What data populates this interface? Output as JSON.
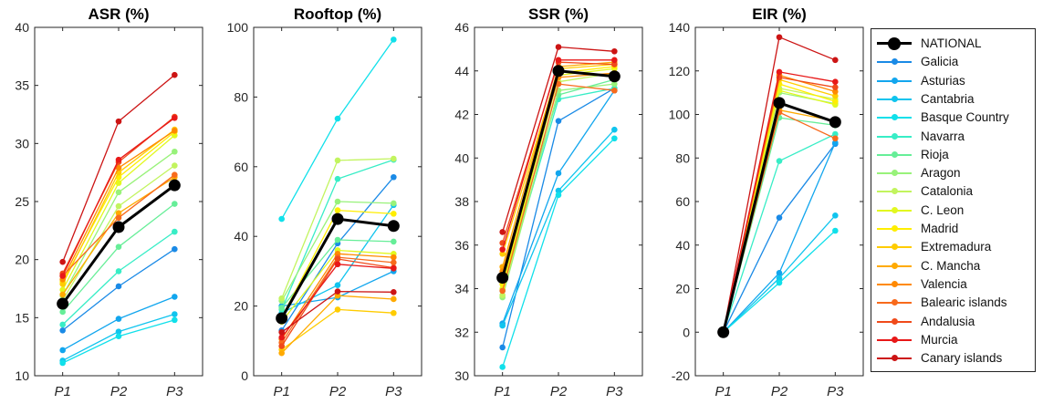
{
  "chart_data": [
    {
      "type": "line",
      "title": "ASR (%)",
      "categories": [
        "P1",
        "P2",
        "P3"
      ],
      "ylim": [
        10,
        40
      ],
      "yticks": [
        10,
        15,
        20,
        25,
        30,
        35,
        40
      ],
      "grid": false,
      "series": [
        {
          "name": "NATIONAL",
          "color": "#000000",
          "values": [
            16.2,
            22.8,
            26.4
          ]
        },
        {
          "name": "Galicia",
          "color": "#1a8ae6",
          "values": [
            13.9,
            17.7,
            20.9
          ]
        },
        {
          "name": "Asturias",
          "color": "#12a6ee",
          "values": [
            12.2,
            14.9,
            16.8
          ]
        },
        {
          "name": "Cantabria",
          "color": "#10c4ee",
          "values": [
            11.3,
            13.8,
            15.3
          ]
        },
        {
          "name": "Basque Country",
          "color": "#10e0ea",
          "values": [
            11.1,
            13.4,
            14.8
          ]
        },
        {
          "name": "Navarra",
          "color": "#38edc6",
          "values": [
            14.4,
            19.0,
            22.4
          ]
        },
        {
          "name": "Rioja",
          "color": "#66ee98",
          "values": [
            15.5,
            21.1,
            24.8
          ]
        },
        {
          "name": "Aragon",
          "color": "#98f27a",
          "values": [
            16.9,
            25.8,
            29.3
          ]
        },
        {
          "name": "Catalonia",
          "color": "#c2f45e",
          "values": [
            16.5,
            24.6,
            28.1
          ]
        },
        {
          "name": "C. Leon",
          "color": "#e2f820",
          "values": [
            17.4,
            26.6,
            30.7
          ]
        },
        {
          "name": "Madrid",
          "color": "#ffee00",
          "values": [
            18.1,
            27.1,
            31.0
          ]
        },
        {
          "name": "Extremadura",
          "color": "#ffcc00",
          "values": [
            17.9,
            27.5,
            31.2
          ]
        },
        {
          "name": "C. Mancha",
          "color": "#ffaa00",
          "values": [
            17.0,
            24.0,
            27.1
          ]
        },
        {
          "name": "Valencia",
          "color": "#ff8a00",
          "values": [
            18.3,
            27.9,
            31.1
          ]
        },
        {
          "name": "Balearic islands",
          "color": "#f86a1c",
          "values": [
            18.6,
            23.6,
            27.3
          ]
        },
        {
          "name": "Andalusia",
          "color": "#f04a1a",
          "values": [
            18.8,
            28.4,
            32.3
          ]
        },
        {
          "name": "Murcia",
          "color": "#e81818",
          "values": [
            18.6,
            28.6,
            32.2
          ]
        },
        {
          "name": "Canary islands",
          "color": "#cc1414",
          "values": [
            19.8,
            31.9,
            35.9
          ]
        }
      ]
    },
    {
      "type": "line",
      "title": "Rooftop (%)",
      "categories": [
        "P1",
        "P2",
        "P3"
      ],
      "ylim": [
        0,
        100
      ],
      "yticks": [
        0,
        20,
        40,
        60,
        80,
        100
      ],
      "grid": false,
      "series": [
        {
          "name": "NATIONAL",
          "color": "#000000",
          "values": [
            16.5,
            45.0,
            43.0
          ]
        },
        {
          "name": "Galicia",
          "color": "#1a8ae6",
          "values": [
            13.0,
            38.0,
            57.0
          ]
        },
        {
          "name": "Asturias",
          "color": "#12a6ee",
          "values": [
            20.0,
            22.5,
            30.0
          ]
        },
        {
          "name": "Cantabria",
          "color": "#10c4ee",
          "values": [
            18.0,
            26.0,
            49.0
          ]
        },
        {
          "name": "Basque Country",
          "color": "#10e0ea",
          "values": [
            45.0,
            73.8,
            96.5
          ]
        },
        {
          "name": "Navarra",
          "color": "#38edc6",
          "values": [
            19.0,
            56.5,
            62.0
          ]
        },
        {
          "name": "Rioja",
          "color": "#66ee98",
          "values": [
            19.5,
            39.0,
            38.5
          ]
        },
        {
          "name": "Aragon",
          "color": "#98f27a",
          "values": [
            21.5,
            50.0,
            49.5
          ]
        },
        {
          "name": "Catalonia",
          "color": "#c2f45e",
          "values": [
            22.2,
            61.8,
            62.3
          ]
        },
        {
          "name": "C. Leon",
          "color": "#e2f820",
          "values": [
            15.5,
            36.0,
            35.0
          ]
        },
        {
          "name": "Madrid",
          "color": "#ffee00",
          "values": [
            16.8,
            47.5,
            46.5
          ]
        },
        {
          "name": "Extremadura",
          "color": "#ffcc00",
          "values": [
            7.5,
            19.0,
            18.0
          ]
        },
        {
          "name": "C. Mancha",
          "color": "#ffaa00",
          "values": [
            6.5,
            23.0,
            22.0
          ]
        },
        {
          "name": "Valencia",
          "color": "#ff8a00",
          "values": [
            10.5,
            35.0,
            34.0
          ]
        },
        {
          "name": "Balearic islands",
          "color": "#f86a1c",
          "values": [
            9.5,
            34.0,
            32.5
          ]
        },
        {
          "name": "Andalusia",
          "color": "#f04a1a",
          "values": [
            8.5,
            33.5,
            31.0
          ]
        },
        {
          "name": "Murcia",
          "color": "#e81818",
          "values": [
            11.0,
            32.0,
            30.8
          ]
        },
        {
          "name": "Canary islands",
          "color": "#cc1414",
          "values": [
            12.5,
            24.2,
            24.0
          ]
        }
      ]
    },
    {
      "type": "line",
      "title": "SSR (%)",
      "categories": [
        "P1",
        "P2",
        "P3"
      ],
      "ylim": [
        30,
        46
      ],
      "yticks": [
        30,
        32,
        34,
        36,
        38,
        40,
        42,
        44,
        46
      ],
      "grid": false,
      "series": [
        {
          "name": "NATIONAL",
          "color": "#000000",
          "values": [
            34.5,
            44.0,
            43.75
          ]
        },
        {
          "name": "Galicia",
          "color": "#1a8ae6",
          "values": [
            31.3,
            41.7,
            43.2
          ]
        },
        {
          "name": "Asturias",
          "color": "#12a6ee",
          "values": [
            32.4,
            39.3,
            43.1
          ]
        },
        {
          "name": "Cantabria",
          "color": "#10c4ee",
          "values": [
            32.3,
            38.5,
            41.3
          ]
        },
        {
          "name": "Basque Country",
          "color": "#10e0ea",
          "values": [
            30.4,
            38.3,
            40.9
          ]
        },
        {
          "name": "Navarra",
          "color": "#38edc6",
          "values": [
            33.9,
            42.7,
            43.2
          ]
        },
        {
          "name": "Rioja",
          "color": "#66ee98",
          "values": [
            34.5,
            42.9,
            43.6
          ]
        },
        {
          "name": "Aragon",
          "color": "#98f27a",
          "values": [
            33.6,
            43.1,
            43.4
          ]
        },
        {
          "name": "Catalonia",
          "color": "#c2f45e",
          "values": [
            33.7,
            43.5,
            43.9
          ]
        },
        {
          "name": "C. Leon",
          "color": "#e2f820",
          "values": [
            34.0,
            43.8,
            44.1
          ]
        },
        {
          "name": "Madrid",
          "color": "#ffee00",
          "values": [
            34.2,
            43.9,
            44.2
          ]
        },
        {
          "name": "Extremadura",
          "color": "#ffcc00",
          "values": [
            35.6,
            44.1,
            44.3
          ]
        },
        {
          "name": "C. Mancha",
          "color": "#ffaa00",
          "values": [
            35.0,
            44.2,
            44.4
          ]
        },
        {
          "name": "Valencia",
          "color": "#ff8a00",
          "values": [
            34.8,
            43.7,
            43.9
          ]
        },
        {
          "name": "Balearic islands",
          "color": "#f86a1c",
          "values": [
            33.9,
            43.4,
            43.1
          ]
        },
        {
          "name": "Andalusia",
          "color": "#f04a1a",
          "values": [
            36.1,
            44.4,
            44.3
          ]
        },
        {
          "name": "Murcia",
          "color": "#e81818",
          "values": [
            35.8,
            44.5,
            44.5
          ]
        },
        {
          "name": "Canary islands",
          "color": "#cc1414",
          "values": [
            36.6,
            45.1,
            44.9
          ]
        }
      ]
    },
    {
      "type": "line",
      "title": "EIR (%)",
      "categories": [
        "P1",
        "P2",
        "P3"
      ],
      "ylim": [
        -20,
        140
      ],
      "yticks": [
        -20,
        0,
        20,
        40,
        60,
        80,
        100,
        120,
        140
      ],
      "grid": false,
      "series": [
        {
          "name": "NATIONAL",
          "color": "#000000",
          "values": [
            0,
            105.3,
            96.5
          ]
        },
        {
          "name": "Galicia",
          "color": "#1a8ae6",
          "values": [
            0,
            52.6,
            86.5
          ]
        },
        {
          "name": "Asturias",
          "color": "#12a6ee",
          "values": [
            0,
            27.2,
            87.0
          ]
        },
        {
          "name": "Cantabria",
          "color": "#10c4ee",
          "values": [
            0,
            24.8,
            53.6
          ]
        },
        {
          "name": "Basque Country",
          "color": "#10e0ea",
          "values": [
            0,
            22.7,
            46.6
          ]
        },
        {
          "name": "Navarra",
          "color": "#38edc6",
          "values": [
            0,
            78.6,
            91.0
          ]
        },
        {
          "name": "Rioja",
          "color": "#66ee98",
          "values": [
            0,
            98.5,
            95.0
          ]
        },
        {
          "name": "Aragon",
          "color": "#98f27a",
          "values": [
            0,
            110.0,
            105.0
          ]
        },
        {
          "name": "Catalonia",
          "color": "#c2f45e",
          "values": [
            0,
            112.0,
            107.0
          ]
        },
        {
          "name": "C. Leon",
          "color": "#e2f820",
          "values": [
            0,
            111.0,
            104.5
          ]
        },
        {
          "name": "Madrid",
          "color": "#ffee00",
          "values": [
            0,
            114.0,
            106.0
          ]
        },
        {
          "name": "Extremadura",
          "color": "#ffcc00",
          "values": [
            0,
            116.0,
            108.5
          ]
        },
        {
          "name": "C. Mancha",
          "color": "#ffaa00",
          "values": [
            0,
            102.0,
            97.0
          ]
        },
        {
          "name": "Valencia",
          "color": "#ff8a00",
          "values": [
            0,
            118.0,
            110.5
          ]
        },
        {
          "name": "Balearic islands",
          "color": "#f86a1c",
          "values": [
            0,
            101.0,
            89.0
          ]
        },
        {
          "name": "Andalusia",
          "color": "#f04a1a",
          "values": [
            0,
            117.0,
            112.5
          ]
        },
        {
          "name": "Murcia",
          "color": "#e81818",
          "values": [
            0,
            119.5,
            115.0
          ]
        },
        {
          "name": "Canary islands",
          "color": "#cc1414",
          "values": [
            0,
            135.5,
            125.0
          ]
        }
      ]
    }
  ],
  "legend": {
    "placement": "right",
    "entries": [
      "NATIONAL",
      "Galicia",
      "Asturias",
      "Cantabria",
      "Basque Country",
      "Navarra",
      "Rioja",
      "Aragon",
      "Catalonia",
      "C. Leon",
      "Madrid",
      "Extremadura",
      "C. Mancha",
      "Valencia",
      "Balearic islands",
      "Andalusia",
      "Murcia",
      "Canary islands"
    ]
  }
}
